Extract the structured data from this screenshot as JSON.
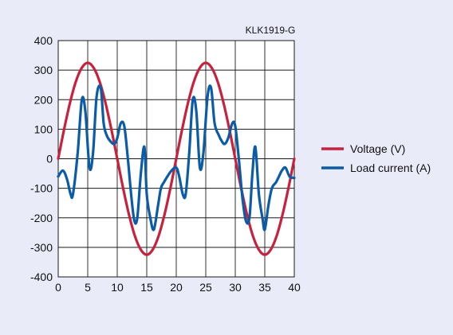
{
  "chart_data": {
    "type": "line",
    "annotation": "KLK1919-G",
    "x_ticks": [
      0,
      5,
      10,
      15,
      20,
      25,
      30,
      35,
      40
    ],
    "y_ticks": [
      400,
      300,
      200,
      100,
      0,
      -100,
      -200,
      -300,
      -400
    ],
    "xlim": [
      0,
      40
    ],
    "ylim": [
      -400,
      400
    ],
    "grid": true,
    "legend_position": "right",
    "series": [
      {
        "name": "Voltage (V)",
        "color": "#c8213d",
        "x": [
          0,
          1,
          2,
          3,
          4,
          5,
          6,
          7,
          8,
          9,
          10,
          11,
          12,
          13,
          14,
          15,
          16,
          17,
          18,
          19,
          20,
          21,
          22,
          23,
          24,
          25,
          26,
          27,
          28,
          29,
          30,
          31,
          32,
          33,
          34,
          35,
          36,
          37,
          38,
          39,
          40
        ],
        "values": [
          0,
          100,
          190,
          262,
          308,
          325,
          308,
          262,
          190,
          100,
          0,
          -100,
          -190,
          -262,
          -308,
          -325,
          -308,
          -262,
          -190,
          -100,
          0,
          100,
          190,
          262,
          308,
          325,
          308,
          262,
          190,
          100,
          0,
          -100,
          -190,
          -262,
          -308,
          -325,
          -308,
          -262,
          -190,
          -100,
          0
        ]
      },
      {
        "name": "Load current (A)",
        "color": "#0b5ca8",
        "x": [
          0,
          0.8,
          1.5,
          2.1,
          2.5,
          3.3,
          4.0,
          4.6,
          5.3,
          5.9,
          6.5,
          7.2,
          7.7,
          8.2,
          8.8,
          9.5,
          10.0,
          10.6,
          11.2,
          11.8,
          12.4,
          12.9,
          13.4,
          14.0,
          14.6,
          15.0,
          15.6,
          16.2,
          16.9,
          17.4,
          17.9,
          18.5,
          19.2,
          20.0,
          20.5,
          21.1,
          21.6,
          22.2,
          22.8,
          23.4,
          24.0,
          24.6,
          25.3,
          25.9,
          26.5,
          27.2,
          27.7,
          28.2,
          28.8,
          29.5,
          30.0,
          30.6,
          31.2,
          31.8,
          32.4,
          32.9,
          33.4,
          34.0,
          34.6,
          35.0,
          35.6,
          36.2,
          36.9,
          37.4,
          37.9,
          38.5,
          39.2,
          40.0
        ],
        "values": [
          -60,
          -40,
          -70,
          -120,
          -120,
          20,
          200,
          160,
          -30,
          20,
          210,
          240,
          120,
          80,
          60,
          50,
          70,
          120,
          110,
          0,
          -130,
          -210,
          -200,
          -50,
          40,
          -120,
          -200,
          -240,
          -160,
          -100,
          -80,
          -60,
          -40,
          -30,
          -60,
          -120,
          -120,
          20,
          200,
          160,
          -30,
          20,
          210,
          240,
          120,
          80,
          60,
          50,
          70,
          120,
          110,
          0,
          -130,
          -210,
          -200,
          -50,
          40,
          -120,
          -200,
          -240,
          -160,
          -100,
          -80,
          -60,
          -40,
          -30,
          -60,
          -65
        ]
      }
    ]
  }
}
